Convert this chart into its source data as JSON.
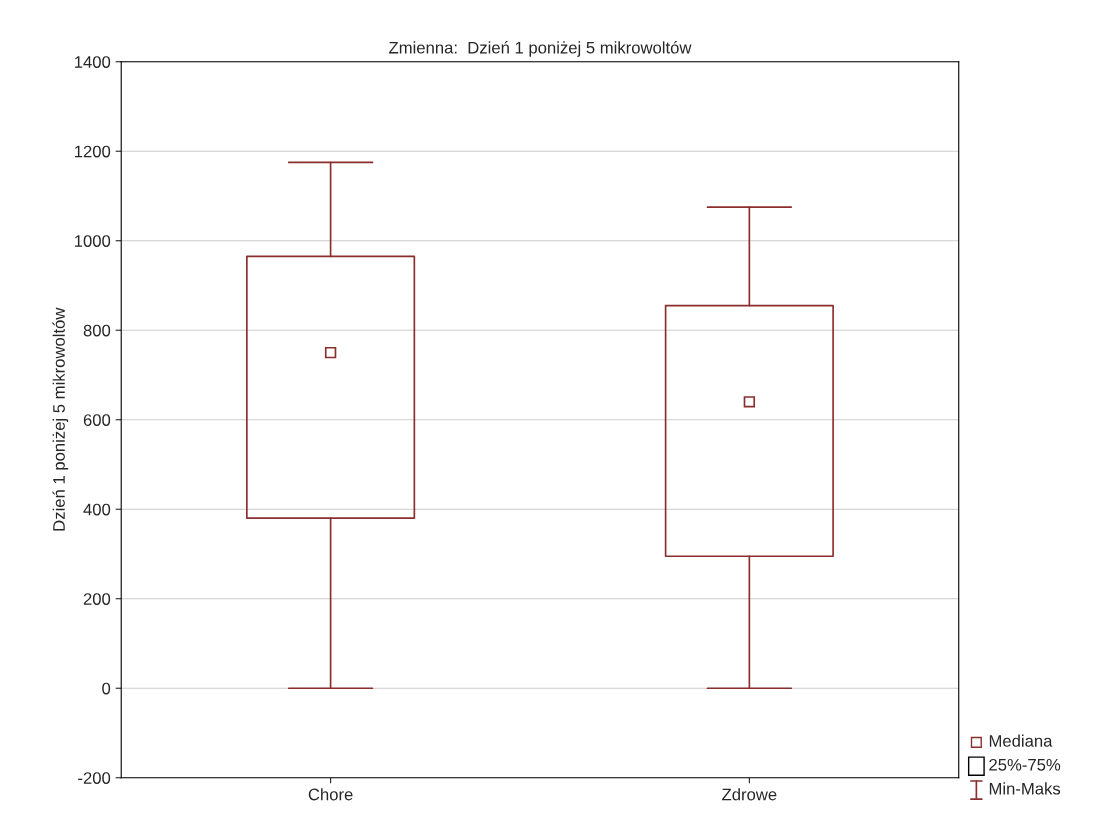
{
  "chart_data": {
    "type": "box",
    "title": "Zmienna:  Dzień 1 poniżej 5 mikrowoltów",
    "ylabel": "Dzień 1 poniżej 5 mikrowoltów",
    "categories": [
      "Chore",
      "Zdrowe"
    ],
    "color": "#8b2e2e",
    "boxes": [
      {
        "low": 0,
        "q1": 380,
        "median": 750,
        "q3": 965,
        "high": 1175
      },
      {
        "low": 0,
        "q1": 295,
        "median": 640,
        "q3": 855,
        "high": 1075
      }
    ],
    "ylim": [
      -200,
      1400
    ],
    "yticks": [
      -200,
      0,
      200,
      400,
      600,
      800,
      1000,
      1200,
      1400
    ],
    "grid": "y",
    "marker": "square",
    "annotations": [
      "Mediana",
      "25%-75%",
      "Min-Maks"
    ]
  }
}
